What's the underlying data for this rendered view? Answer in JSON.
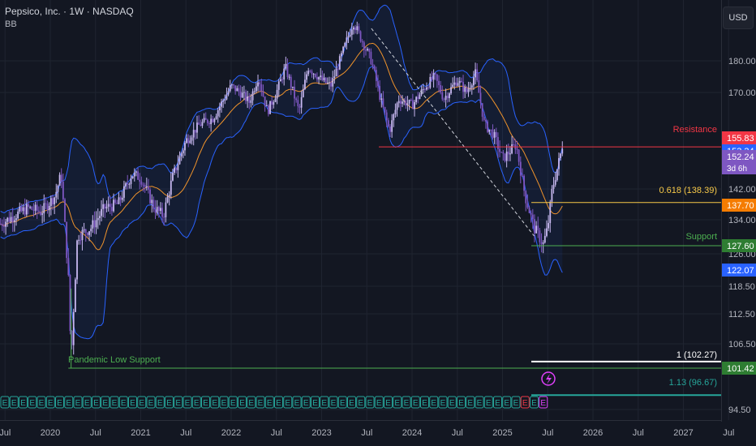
{
  "header": {
    "title": "Pepsico, Inc. · 1W · NASDAQ",
    "indicator": "BB"
  },
  "currency": "USD",
  "colors": {
    "bg": "#131722",
    "grid": "#1f2430",
    "text": "#b2b5be",
    "up": "#c7b8f0",
    "down": "#7e57c2",
    "bb": "#2962ff",
    "basis": "#f0932b",
    "resistance": "#f23645",
    "fib": "#f7c948",
    "support": "#4caf50",
    "white": "#ffffff",
    "teal": "#26a69a"
  },
  "chart_data": {
    "type": "candlestick",
    "y_ticks": [
      "180.00",
      "170.00",
      "142.00",
      "134.00",
      "126.00",
      "118.50",
      "112.50",
      "106.50",
      "94.50"
    ],
    "x_ticks": [
      "Jul",
      "2020",
      "Jul",
      "2021",
      "Jul",
      "2022",
      "Jul",
      "2023",
      "Jul",
      "2024",
      "Jul",
      "2025",
      "Jul",
      "2026",
      "Jul",
      "2027",
      "Jul"
    ],
    "price_tags": [
      {
        "label": "155.83",
        "color": "#f23645"
      },
      {
        "label": "153.34",
        "color": "#2962ff"
      },
      {
        "label": "152.24",
        "sub": "3d 6h",
        "color": "#7e57c2"
      },
      {
        "label": "137.70",
        "color": "#f57c00"
      },
      {
        "label": "127.60",
        "color": "#2e7d32"
      },
      {
        "label": "122.07",
        "color": "#2962ff"
      },
      {
        "label": "101.42",
        "color": "#2e7d32"
      }
    ],
    "annotations": {
      "resistance": "Resistance",
      "fib_618": "0.618 (138.39)",
      "support": "Support",
      "pandemic": "Pandemic Low Support",
      "fib_1": "1 (102.27)",
      "fib_113": "1.13 (96.67)"
    },
    "earnings_label": "E",
    "bollinger_bands": true,
    "grid": true
  }
}
